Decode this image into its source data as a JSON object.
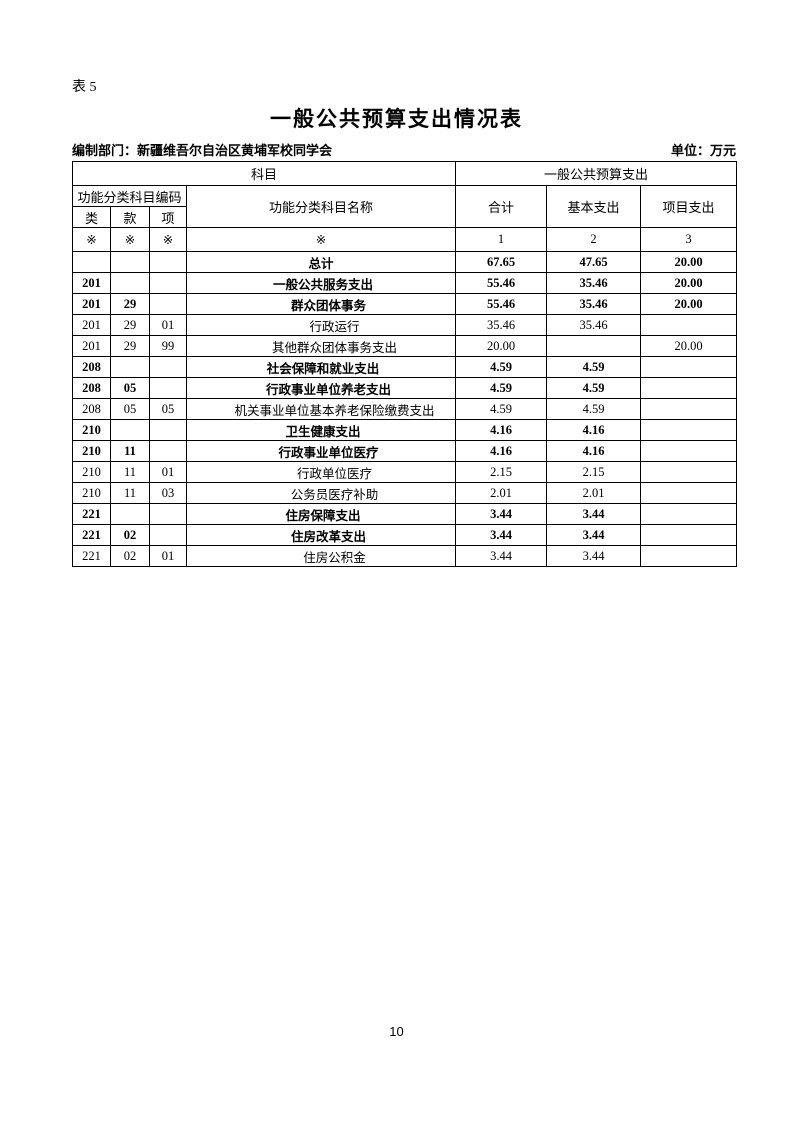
{
  "page": {
    "table_label": "表 5",
    "title": "一般公共预算支出情况表",
    "prepared_by": "编制部门：新疆维吾尔自治区黄埔军校同学会",
    "unit": "单位：万元",
    "page_number": "10"
  },
  "table": {
    "header": {
      "subject": "科目",
      "budget_group": "一般公共预算支出",
      "code_group": "功能分类科目编码",
      "name": "功能分类科目名称",
      "total": "合计",
      "basic": "基本支出",
      "project": "项目支出",
      "col_class": "类",
      "col_section": "款",
      "col_item": "项",
      "mark": "※",
      "num1": "1",
      "num2": "2",
      "num3": "3"
    },
    "rows": [
      {
        "code_class": "",
        "code_section": "",
        "code_item": "",
        "name": "总计",
        "total": "67.65",
        "basic": "47.65",
        "project": "20.00",
        "level": 0
      },
      {
        "code_class": "201",
        "code_section": "",
        "code_item": "",
        "name": "一般公共服务支出",
        "total": "55.46",
        "basic": "35.46",
        "project": "20.00",
        "level": 1
      },
      {
        "code_class": "201",
        "code_section": "29",
        "code_item": "",
        "name": "群众团体事务",
        "total": "55.46",
        "basic": "35.46",
        "project": "20.00",
        "level": 2
      },
      {
        "code_class": "201",
        "code_section": "29",
        "code_item": "01",
        "name": "行政运行",
        "total": "35.46",
        "basic": "35.46",
        "project": "",
        "level": 3
      },
      {
        "code_class": "201",
        "code_section": "29",
        "code_item": "99",
        "name": "其他群众团体事务支出",
        "total": "20.00",
        "basic": "",
        "project": "20.00",
        "level": 3
      },
      {
        "code_class": "208",
        "code_section": "",
        "code_item": "",
        "name": "社会保障和就业支出",
        "total": "4.59",
        "basic": "4.59",
        "project": "",
        "level": 1
      },
      {
        "code_class": "208",
        "code_section": "05",
        "code_item": "",
        "name": "行政事业单位养老支出",
        "total": "4.59",
        "basic": "4.59",
        "project": "",
        "level": 2
      },
      {
        "code_class": "208",
        "code_section": "05",
        "code_item": "05",
        "name": "机关事业单位基本养老保险缴费支出",
        "total": "4.59",
        "basic": "4.59",
        "project": "",
        "level": 3
      },
      {
        "code_class": "210",
        "code_section": "",
        "code_item": "",
        "name": "卫生健康支出",
        "total": "4.16",
        "basic": "4.16",
        "project": "",
        "level": 1
      },
      {
        "code_class": "210",
        "code_section": "11",
        "code_item": "",
        "name": "行政事业单位医疗",
        "total": "4.16",
        "basic": "4.16",
        "project": "",
        "level": 2
      },
      {
        "code_class": "210",
        "code_section": "11",
        "code_item": "01",
        "name": "行政单位医疗",
        "total": "2.15",
        "basic": "2.15",
        "project": "",
        "level": 3
      },
      {
        "code_class": "210",
        "code_section": "11",
        "code_item": "03",
        "name": "公务员医疗补助",
        "total": "2.01",
        "basic": "2.01",
        "project": "",
        "level": 3
      },
      {
        "code_class": "221",
        "code_section": "",
        "code_item": "",
        "name": "住房保障支出",
        "total": "3.44",
        "basic": "3.44",
        "project": "",
        "level": 1
      },
      {
        "code_class": "221",
        "code_section": "02",
        "code_item": "",
        "name": "住房改革支出",
        "total": "3.44",
        "basic": "3.44",
        "project": "",
        "level": 2
      },
      {
        "code_class": "221",
        "code_section": "02",
        "code_item": "01",
        "name": "住房公积金",
        "total": "3.44",
        "basic": "3.44",
        "project": "",
        "level": 3
      }
    ]
  }
}
